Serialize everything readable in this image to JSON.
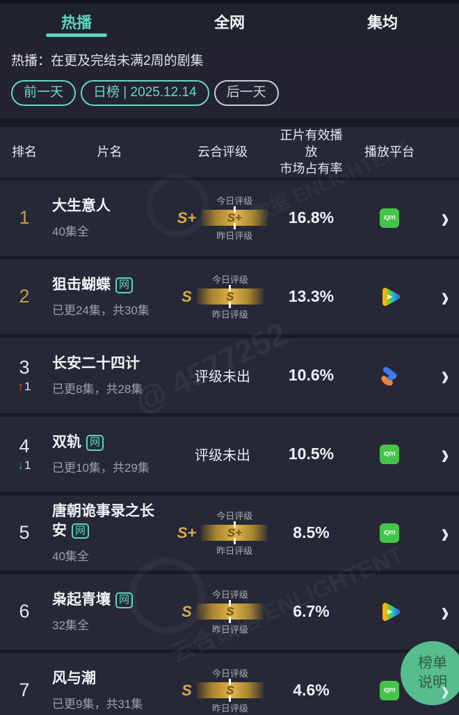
{
  "app": {
    "tabs": [
      {
        "label": "热播",
        "active": true,
        "color": "#5bd6bc"
      },
      {
        "label": "全网",
        "active": false,
        "color": "#f2f3f5"
      },
      {
        "label": "集均",
        "active": false,
        "color": "#f2f3f5"
      }
    ],
    "filter_note": "热播：在更及完结未满2周的剧集",
    "date_nav": {
      "prev_label": "前一天",
      "current_label": "日榜 | 2025.12.14",
      "next_label": "后一天",
      "prev_color": "#68d9c1",
      "current_color": "#68d9c1",
      "next_color": "#c9ced8"
    }
  },
  "table": {
    "headers": {
      "rank": "排名",
      "title": "片名",
      "rating": "云合评级",
      "share_line1": "正片有效播放",
      "share_line2": "市场占有率",
      "platform": "播放平台"
    },
    "rating_labels": {
      "today": "今日评级",
      "yesterday": "昨日评级"
    },
    "no_rating_text": "评级未出",
    "web_badge": "网",
    "platform_labels": {
      "iqiyi": "iQIYI"
    },
    "rows": [
      {
        "rank": "1",
        "rank_color": "#c79b4a",
        "title": "大生意人",
        "episodes": "40集全",
        "rating": "S+",
        "share": "16.8%",
        "platform": "iqiyi"
      },
      {
        "rank": "2",
        "rank_color": "#c79b4a",
        "title": "狙击蝴蝶",
        "web": true,
        "episodes": "已更24集，共30集",
        "rating": "S",
        "share": "13.3%",
        "platform": "tencent"
      },
      {
        "rank": "3",
        "rank_color": "#e3e6ec",
        "change": {
          "arrow": "↑",
          "value": "1",
          "color": "#e0603a"
        },
        "title": "长安二十四计",
        "episodes": "已更8集，共28集",
        "rating": "",
        "share": "10.6%",
        "platform": "youku"
      },
      {
        "rank": "4",
        "rank_color": "#e3e6ec",
        "change": {
          "arrow": "↓",
          "value": "1",
          "color": "#3eac7c"
        },
        "title": "双轨",
        "web": true,
        "episodes": "已更10集，共29集",
        "rating": "",
        "share": "10.5%",
        "platform": "iqiyi"
      },
      {
        "rank": "5",
        "rank_color": "#e3e6ec",
        "title": "唐朝诡事录之长安",
        "web": true,
        "episodes": "40集全",
        "rating": "S+",
        "share": "8.5%",
        "platform": "iqiyi"
      },
      {
        "rank": "6",
        "rank_color": "#e3e6ec",
        "title": "枭起青壤",
        "web": true,
        "episodes": "32集全",
        "rating": "S",
        "share": "6.7%",
        "platform": "tencent"
      },
      {
        "rank": "7",
        "rank_color": "#e3e6ec",
        "title": "风与潮",
        "episodes": "已更9集，共31集",
        "rating": "S",
        "share": "4.6%",
        "platform": "iqiyi"
      }
    ]
  },
  "icons": {
    "chevron_right": "›"
  },
  "floating_button": {
    "line1": "榜单",
    "line2": "说明"
  },
  "watermark": {
    "id_text": "@ 4577252",
    "brand_text": "云合数据 ENLIGHTENT"
  },
  "colors": {
    "accent_teal": "#5bd6bc",
    "gold": "#c79b4a",
    "gold_bar": "#d6ab45",
    "up_arrow": "#e0603a",
    "down_arrow": "#3eac7c",
    "iqiyi_green": "#45c34a"
  }
}
